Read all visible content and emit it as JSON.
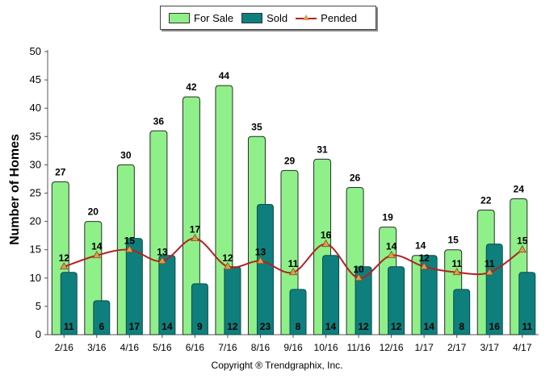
{
  "chart_data": {
    "type": "bar",
    "categories": [
      "2/16",
      "3/16",
      "4/16",
      "5/16",
      "6/16",
      "7/16",
      "8/16",
      "9/16",
      "10/16",
      "11/16",
      "12/16",
      "1/17",
      "2/17",
      "3/17",
      "4/17"
    ],
    "series": [
      {
        "name": "For Sale",
        "type": "bar",
        "color": "#8ff08a",
        "values": [
          27,
          20,
          30,
          36,
          42,
          44,
          35,
          29,
          31,
          26,
          19,
          14,
          15,
          22,
          24
        ]
      },
      {
        "name": "Sold",
        "type": "bar",
        "color": "#0e7f7c",
        "values": [
          11,
          6,
          17,
          14,
          9,
          12,
          23,
          8,
          14,
          12,
          12,
          14,
          8,
          16,
          11
        ]
      },
      {
        "name": "Pended",
        "type": "line",
        "color": "#b22222",
        "marker_color": "#d6a050",
        "values": [
          12,
          14,
          15,
          13,
          17,
          12,
          13,
          11,
          16,
          10,
          14,
          12,
          11,
          11,
          15
        ]
      }
    ],
    "ylabel": "Number of Homes",
    "ylim": [
      0,
      50
    ],
    "yticks": [
      0,
      5,
      10,
      15,
      20,
      25,
      30,
      35,
      40,
      45,
      50
    ],
    "legend_position": "top-center",
    "grid": false
  },
  "footer": {
    "copyright": "Copyright ® Trendgraphix, Inc."
  }
}
